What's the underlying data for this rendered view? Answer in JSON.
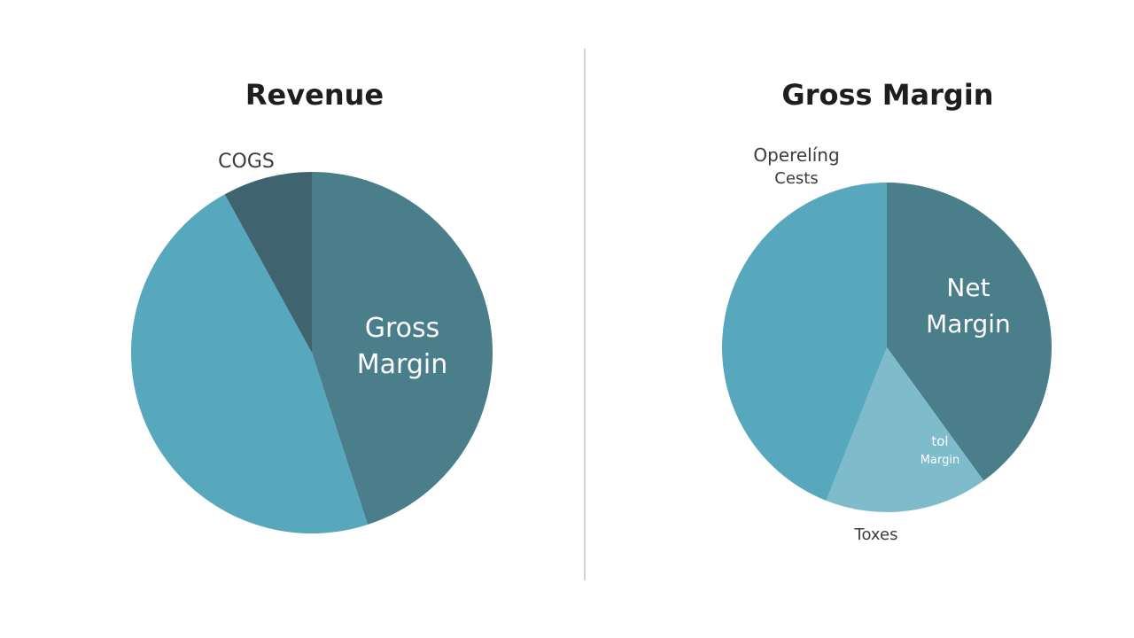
{
  "colors": {
    "divider": "#d0d4d6",
    "background": "#ffffff"
  },
  "chart_data": [
    {
      "type": "pie",
      "title": "Revenue",
      "slices": [
        {
          "label": "Gross Margin",
          "value": 45,
          "color": "#4a7e8a",
          "label_placement": "inside"
        },
        {
          "label": "",
          "value": 47,
          "color": "#57a7bd",
          "label_placement": "none"
        },
        {
          "label": "COGS",
          "value": 8,
          "color": "#3f6470",
          "label_placement": "outside"
        }
      ]
    },
    {
      "type": "pie",
      "title": "Gross Margin",
      "slices": [
        {
          "label": "Net Margin",
          "value": 40,
          "color": "#4a7e8a",
          "label_placement": "inside"
        },
        {
          "label": "tol Margin",
          "value": 16,
          "color": "#7fbccb",
          "label_placement": "inside"
        },
        {
          "label": "Operelíng Cests",
          "value": 44,
          "color": "#57a7bd",
          "label_placement": "outside"
        }
      ],
      "extra_labels": [
        "Toxes"
      ]
    }
  ]
}
